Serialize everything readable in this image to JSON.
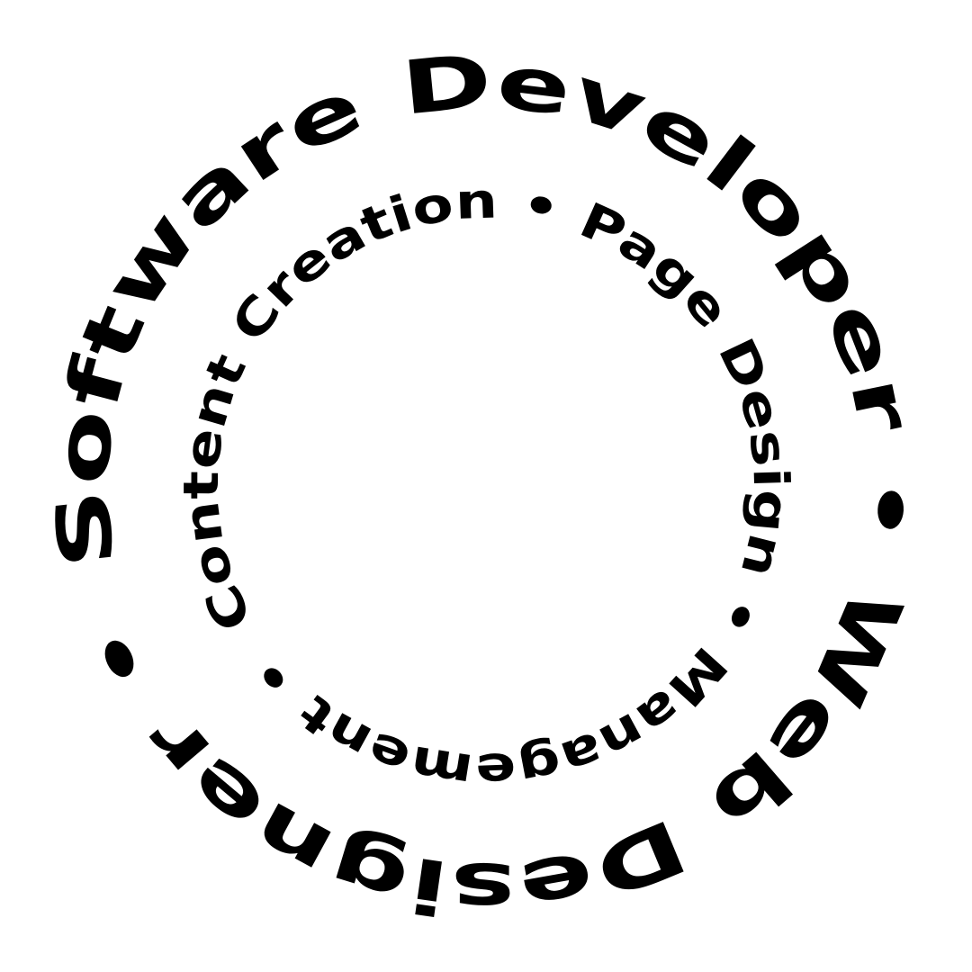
{
  "badge": {
    "outer_ring": {
      "phrases": [
        "Software Developer",
        "Web Designer"
      ],
      "separator": " • "
    },
    "inner_ring": {
      "phrases": [
        "Content Creation",
        "Page Design",
        "Management"
      ],
      "separator": " • "
    },
    "colors": {
      "text": "#000000",
      "background": "#ffffff"
    }
  }
}
